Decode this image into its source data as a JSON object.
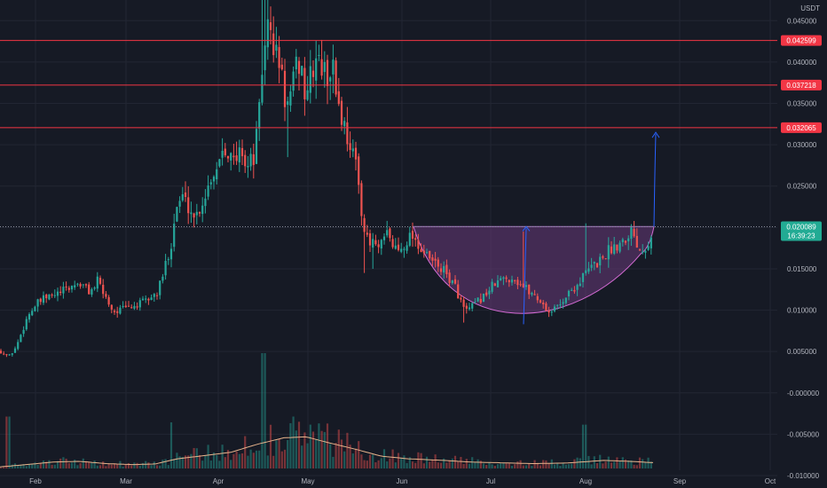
{
  "chart_data": {
    "type": "candlestick",
    "quote_currency": "USDT",
    "x_axis": {
      "ticks": [
        "Feb",
        "Mar",
        "Apr",
        "May",
        "Jun",
        "Jul",
        "Aug",
        "Sep",
        "Oct"
      ]
    },
    "y_axis": {
      "scale": "linear",
      "range": [
        -0.0115,
        0.0475
      ],
      "ticks": [
        "0.045000",
        "0.040000",
        "0.035000",
        "0.030000",
        "0.025000",
        "0.020000",
        "0.015000",
        "0.010000",
        "0.005000",
        "-0.000000",
        "-0.005000",
        "-0.010000"
      ]
    },
    "grid": true,
    "resistance_levels": [
      {
        "value": 0.042599,
        "label": "0.042599"
      },
      {
        "value": 0.037218,
        "label": "0.037218"
      },
      {
        "value": 0.032065,
        "label": "0.032065"
      }
    ],
    "current_price": {
      "value": 0.020089,
      "label": "0.020089",
      "countdown": "16:39:23"
    },
    "colors": {
      "background": "#161a25",
      "grid": "#222633",
      "up": "#26a69a",
      "down": "#ef5350",
      "resistance": "#f23645",
      "volume_ma": "#e8b48c",
      "cup_fill": "#6a3a7a",
      "cup_stroke": "#d36bd3",
      "projection": "#2962ff",
      "price_label_bg": "#22ab94"
    },
    "anchors_close": [
      [
        0,
        0.0051
      ],
      [
        5,
        0.0047
      ],
      [
        10,
        0.0044
      ],
      [
        18,
        0.0055
      ],
      [
        25,
        0.0075
      ],
      [
        32,
        0.0095
      ],
      [
        42,
        0.0108
      ],
      [
        52,
        0.0115
      ],
      [
        62,
        0.0118
      ],
      [
        75,
        0.0125
      ],
      [
        88,
        0.0133
      ],
      [
        95,
        0.0128
      ],
      [
        102,
        0.0122
      ],
      [
        110,
        0.0135
      ],
      [
        118,
        0.0118
      ],
      [
        128,
        0.0098
      ],
      [
        140,
        0.0102
      ],
      [
        155,
        0.0106
      ],
      [
        170,
        0.0115
      ],
      [
        178,
        0.0122
      ],
      [
        185,
        0.0148
      ],
      [
        193,
        0.0182
      ],
      [
        198,
        0.0222
      ],
      [
        205,
        0.0238
      ],
      [
        212,
        0.0226
      ],
      [
        220,
        0.0212
      ],
      [
        230,
        0.0236
      ],
      [
        238,
        0.0262
      ],
      [
        245,
        0.0275
      ],
      [
        252,
        0.0305
      ],
      [
        258,
        0.029
      ],
      [
        265,
        0.0275
      ],
      [
        272,
        0.0298
      ],
      [
        278,
        0.0272
      ],
      [
        286,
        0.0285
      ],
      [
        292,
        0.0335
      ],
      [
        297,
        0.0415
      ],
      [
        301,
        0.0445
      ],
      [
        306,
        0.043
      ],
      [
        310,
        0.0412
      ],
      [
        316,
        0.0395
      ],
      [
        321,
        0.0355
      ],
      [
        326,
        0.0345
      ],
      [
        332,
        0.0385
      ],
      [
        338,
        0.0402
      ],
      [
        344,
        0.036
      ],
      [
        350,
        0.038
      ],
      [
        356,
        0.0405
      ],
      [
        362,
        0.0395
      ],
      [
        368,
        0.038
      ],
      [
        374,
        0.0398
      ],
      [
        380,
        0.036
      ],
      [
        386,
        0.0328
      ],
      [
        392,
        0.031
      ],
      [
        398,
        0.029
      ],
      [
        404,
        0.0255
      ],
      [
        410,
        0.02
      ],
      [
        416,
        0.0175
      ],
      [
        420,
        0.0185
      ],
      [
        425,
        0.0172
      ],
      [
        430,
        0.0178
      ],
      [
        436,
        0.0192
      ],
      [
        443,
        0.0178
      ],
      [
        450,
        0.0172
      ],
      [
        458,
        0.0185
      ],
      [
        465,
        0.0192
      ],
      [
        472,
        0.0178
      ],
      [
        480,
        0.0165
      ],
      [
        488,
        0.0158
      ],
      [
        496,
        0.0152
      ],
      [
        504,
        0.0142
      ],
      [
        512,
        0.013
      ],
      [
        518,
        0.0115
      ],
      [
        524,
        0.0098
      ],
      [
        530,
        0.0102
      ],
      [
        538,
        0.011
      ],
      [
        546,
        0.0118
      ],
      [
        554,
        0.0128
      ],
      [
        562,
        0.0135
      ],
      [
        570,
        0.0138
      ],
      [
        578,
        0.014
      ],
      [
        586,
        0.0132
      ],
      [
        594,
        0.0125
      ],
      [
        602,
        0.0118
      ],
      [
        610,
        0.011
      ],
      [
        618,
        0.0098
      ],
      [
        626,
        0.0102
      ],
      [
        634,
        0.0112
      ],
      [
        642,
        0.0122
      ],
      [
        650,
        0.013
      ],
      [
        658,
        0.0142
      ],
      [
        666,
        0.0152
      ],
      [
        674,
        0.0158
      ],
      [
        682,
        0.0168
      ],
      [
        690,
        0.0176
      ],
      [
        698,
        0.0182
      ],
      [
        706,
        0.019
      ],
      [
        712,
        0.0198
      ],
      [
        718,
        0.0182
      ],
      [
        722,
        0.0172
      ],
      [
        727,
        0.0178
      ],
      [
        732,
        0.0188
      ],
      [
        737,
        0.0201
      ]
    ],
    "volume_ma_anchors": [
      [
        0,
        0.05
      ],
      [
        30,
        0.12
      ],
      [
        60,
        0.2
      ],
      [
        90,
        0.22
      ],
      [
        120,
        0.15
      ],
      [
        150,
        0.12
      ],
      [
        175,
        0.14
      ],
      [
        200,
        0.3
      ],
      [
        230,
        0.4
      ],
      [
        260,
        0.5
      ],
      [
        290,
        0.75
      ],
      [
        320,
        0.95
      ],
      [
        345,
        0.98
      ],
      [
        370,
        0.8
      ],
      [
        400,
        0.6
      ],
      [
        430,
        0.38
      ],
      [
        460,
        0.3
      ],
      [
        500,
        0.25
      ],
      [
        530,
        0.2
      ],
      [
        560,
        0.18
      ],
      [
        600,
        0.15
      ],
      [
        640,
        0.17
      ],
      [
        680,
        0.25
      ],
      [
        710,
        0.22
      ],
      [
        737,
        0.18
      ]
    ],
    "cup_pattern": {
      "rim_price": 0.0201,
      "bottom_price": 0.0083,
      "start_x_frac": 0.53,
      "end_x_frac": 0.83
    },
    "projection_target": 0.0315
  }
}
